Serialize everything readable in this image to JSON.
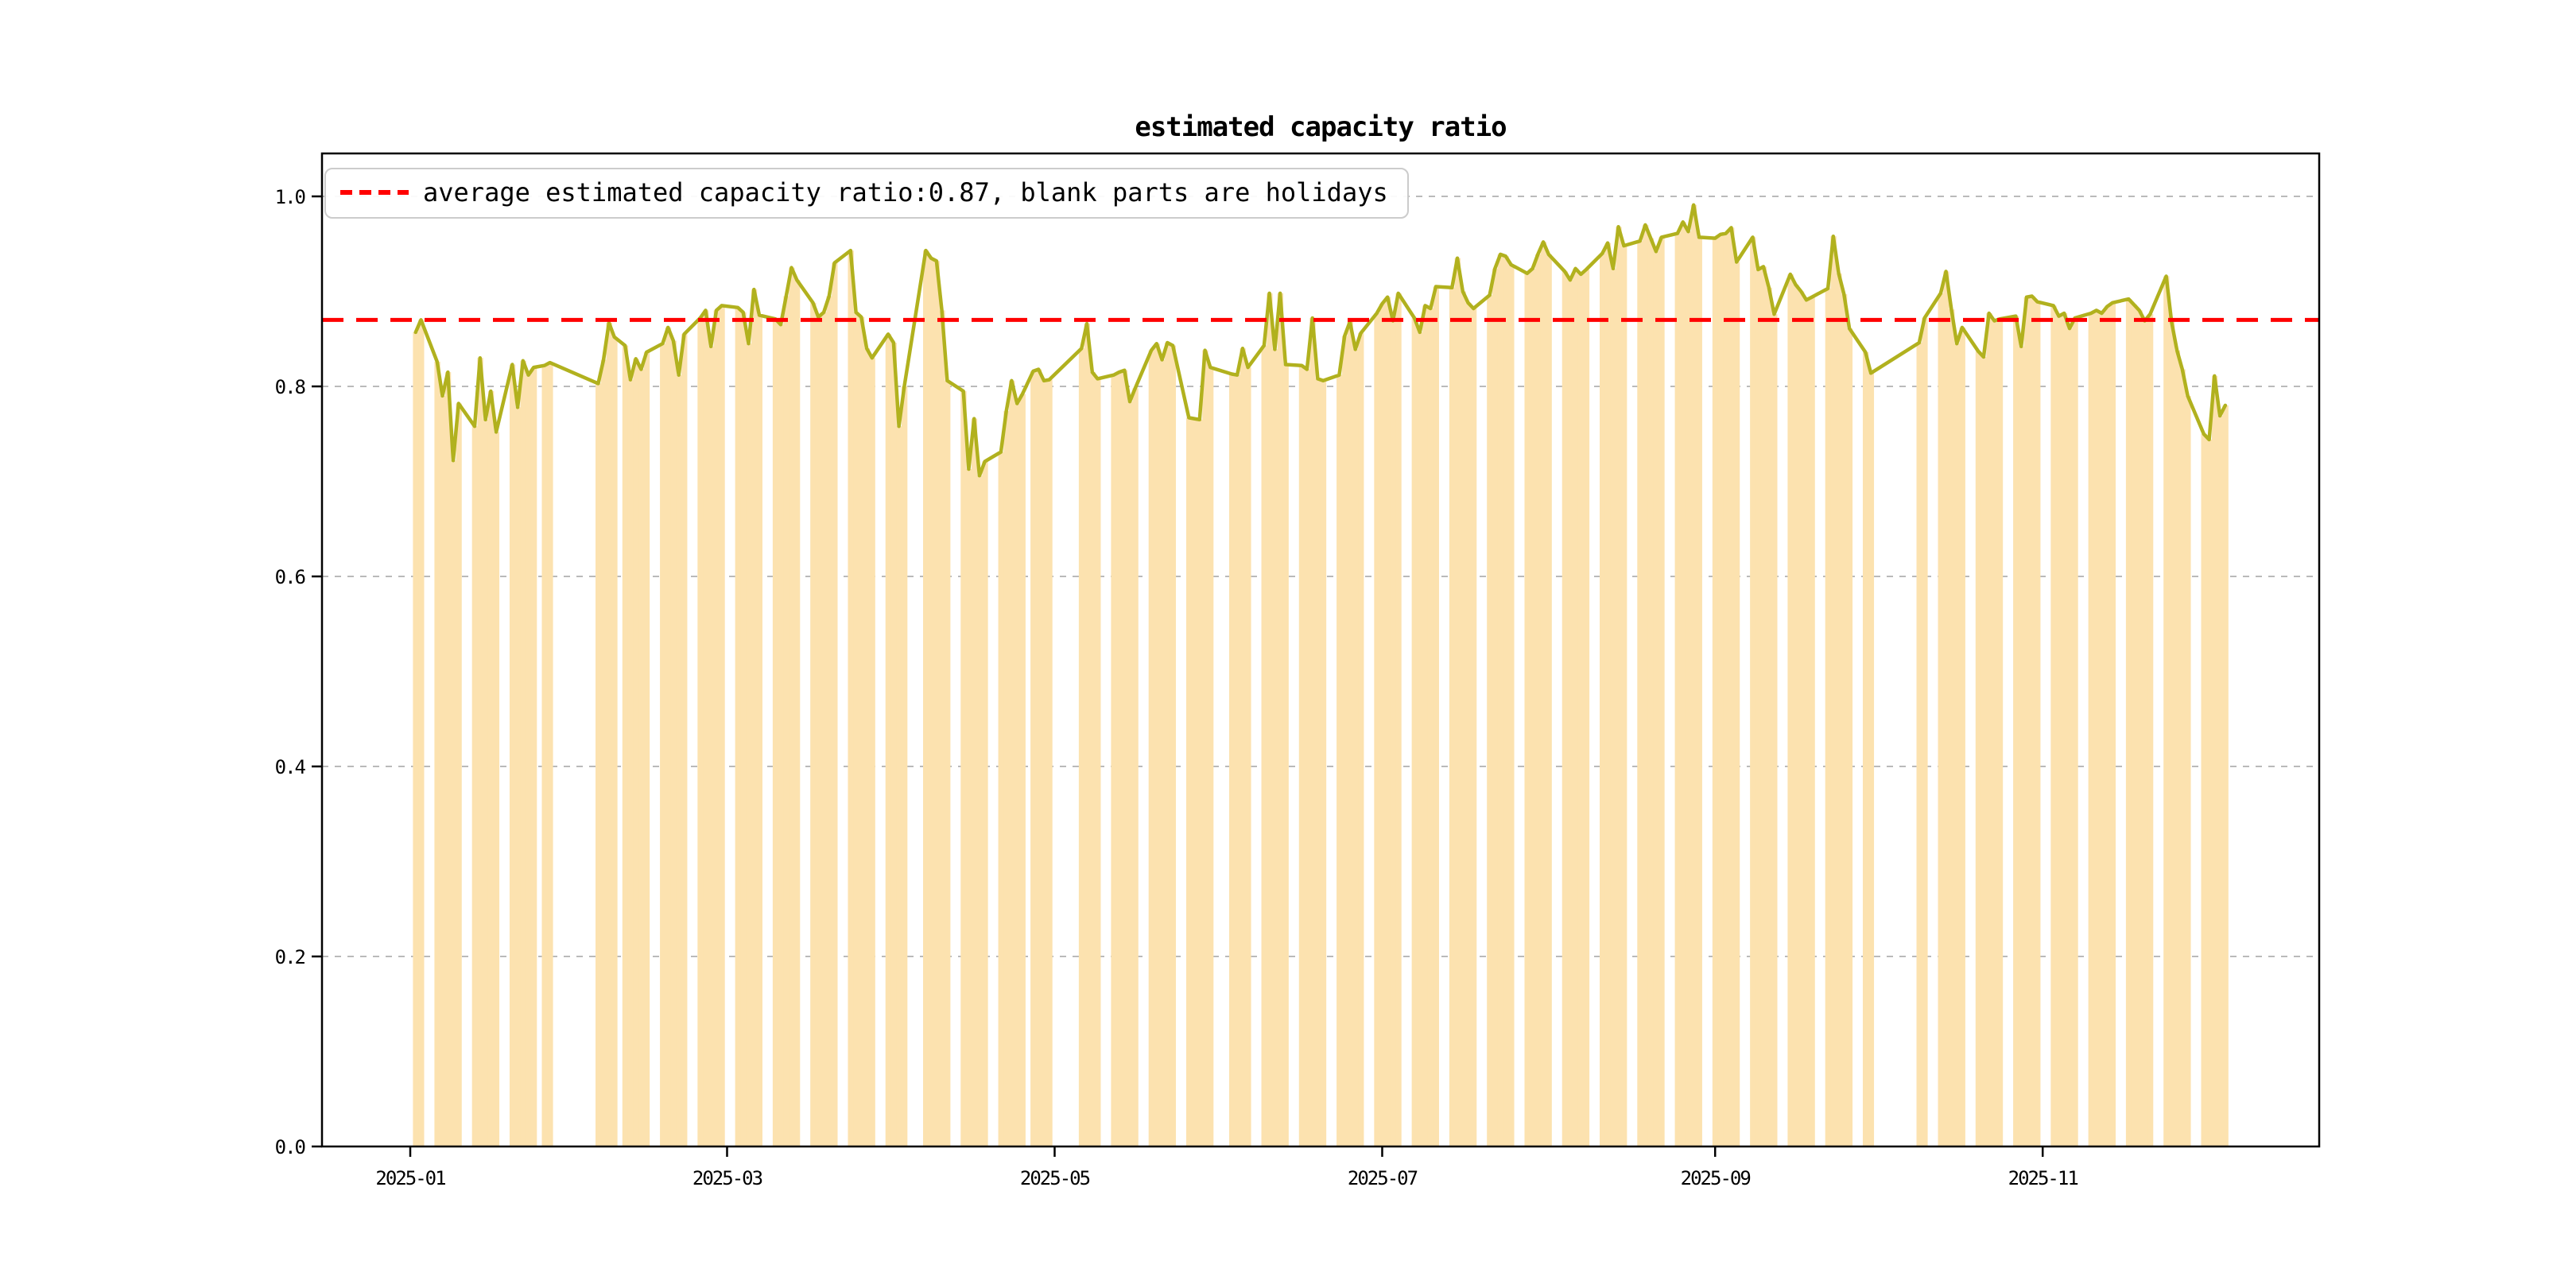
{
  "title": "estimated capacity ratio",
  "legend": {
    "label": "average estimated capacity ratio:0.87, blank parts are holidays",
    "swatch_color": "#ff0000",
    "swatch_style": "dashed"
  },
  "chart_data": {
    "type": "bar+line",
    "title": "estimated capacity ratio",
    "xlabel": "",
    "ylabel": "",
    "ylim": [
      0.0,
      1.045
    ],
    "x_axis_start": "2024-12-15",
    "x_axis_end": "2025-12-23",
    "grid": "horizontal-dashed",
    "legend_position": "upper left",
    "x_tick_labels": [
      "2025-01",
      "2025-03",
      "2025-05",
      "2025-07",
      "2025-09",
      "2025-11"
    ],
    "x_tick_dates": [
      "2025-01-01",
      "2025-03-01",
      "2025-05-01",
      "2025-07-01",
      "2025-09-01",
      "2025-11-01"
    ],
    "y_tick_labels": [
      "0.0",
      "0.2",
      "0.4",
      "0.6",
      "0.8",
      "1.0"
    ],
    "y_tick_values": [
      0.0,
      0.2,
      0.4,
      0.6,
      0.8,
      1.0
    ],
    "average_line": {
      "value": 0.87,
      "color": "#ff0000",
      "style": "dashed"
    },
    "colors": {
      "bar": "#fce2af",
      "line": "#b1b11e",
      "grid": "#b0b0b0",
      "spine": "#000000",
      "average": "#ff0000",
      "legend_border": "#cccccc"
    },
    "note": "blank parts are holidays",
    "points": [
      [
        "2025-01-02",
        0.857
      ],
      [
        "2025-01-03",
        0.87
      ],
      [
        "2025-01-06",
        0.826
      ],
      [
        "2025-01-07",
        0.79
      ],
      [
        "2025-01-08",
        0.815
      ],
      [
        "2025-01-09",
        0.722
      ],
      [
        "2025-01-10",
        0.782
      ],
      [
        "2025-01-13",
        0.758
      ],
      [
        "2025-01-14",
        0.83
      ],
      [
        "2025-01-15",
        0.765
      ],
      [
        "2025-01-16",
        0.795
      ],
      [
        "2025-01-17",
        0.752
      ],
      [
        "2025-01-20",
        0.823
      ],
      [
        "2025-01-21",
        0.778
      ],
      [
        "2025-01-22",
        0.827
      ],
      [
        "2025-01-23",
        0.812
      ],
      [
        "2025-01-24",
        0.82
      ],
      [
        "2025-01-26",
        0.822
      ],
      [
        "2025-01-27",
        0.825
      ],
      [
        "2025-02-05",
        0.803
      ],
      [
        "2025-02-06",
        0.828
      ],
      [
        "2025-02-07",
        0.867
      ],
      [
        "2025-02-08",
        0.852
      ],
      [
        "2025-02-10",
        0.843
      ],
      [
        "2025-02-11",
        0.807
      ],
      [
        "2025-02-12",
        0.829
      ],
      [
        "2025-02-13",
        0.818
      ],
      [
        "2025-02-14",
        0.836
      ],
      [
        "2025-02-17",
        0.845
      ],
      [
        "2025-02-18",
        0.862
      ],
      [
        "2025-02-19",
        0.848
      ],
      [
        "2025-02-20",
        0.812
      ],
      [
        "2025-02-21",
        0.855
      ],
      [
        "2025-02-24",
        0.872
      ],
      [
        "2025-02-25",
        0.88
      ],
      [
        "2025-02-26",
        0.842
      ],
      [
        "2025-02-27",
        0.88
      ],
      [
        "2025-02-28",
        0.885
      ],
      [
        "2025-03-03",
        0.883
      ],
      [
        "2025-03-04",
        0.878
      ],
      [
        "2025-03-05",
        0.845
      ],
      [
        "2025-03-06",
        0.902
      ],
      [
        "2025-03-07",
        0.875
      ],
      [
        "2025-03-10",
        0.871
      ],
      [
        "2025-03-11",
        0.865
      ],
      [
        "2025-03-12",
        0.895
      ],
      [
        "2025-03-13",
        0.925
      ],
      [
        "2025-03-14",
        0.912
      ],
      [
        "2025-03-17",
        0.888
      ],
      [
        "2025-03-18",
        0.873
      ],
      [
        "2025-03-19",
        0.878
      ],
      [
        "2025-03-20",
        0.895
      ],
      [
        "2025-03-21",
        0.93
      ],
      [
        "2025-03-24",
        0.943
      ],
      [
        "2025-03-25",
        0.878
      ],
      [
        "2025-03-26",
        0.873
      ],
      [
        "2025-03-27",
        0.84
      ],
      [
        "2025-03-28",
        0.83
      ],
      [
        "2025-03-31",
        0.855
      ],
      [
        "2025-04-01",
        0.846
      ],
      [
        "2025-04-02",
        0.758
      ],
      [
        "2025-04-03",
        0.8
      ],
      [
        "2025-04-07",
        0.943
      ],
      [
        "2025-04-08",
        0.935
      ],
      [
        "2025-04-09",
        0.932
      ],
      [
        "2025-04-10",
        0.88
      ],
      [
        "2025-04-11",
        0.806
      ],
      [
        "2025-04-14",
        0.795
      ],
      [
        "2025-04-15",
        0.713
      ],
      [
        "2025-04-16",
        0.766
      ],
      [
        "2025-04-17",
        0.706
      ],
      [
        "2025-04-18",
        0.721
      ],
      [
        "2025-04-21",
        0.731
      ],
      [
        "2025-04-22",
        0.774
      ],
      [
        "2025-04-23",
        0.806
      ],
      [
        "2025-04-24",
        0.782
      ],
      [
        "2025-04-25",
        0.792
      ],
      [
        "2025-04-27",
        0.816
      ],
      [
        "2025-04-28",
        0.818
      ],
      [
        "2025-04-29",
        0.806
      ],
      [
        "2025-04-30",
        0.807
      ],
      [
        "2025-05-06",
        0.84
      ],
      [
        "2025-05-07",
        0.866
      ],
      [
        "2025-05-08",
        0.815
      ],
      [
        "2025-05-09",
        0.808
      ],
      [
        "2025-05-12",
        0.812
      ],
      [
        "2025-05-13",
        0.815
      ],
      [
        "2025-05-14",
        0.817
      ],
      [
        "2025-05-15",
        0.784
      ],
      [
        "2025-05-16",
        0.798
      ],
      [
        "2025-05-19",
        0.838
      ],
      [
        "2025-05-20",
        0.845
      ],
      [
        "2025-05-21",
        0.828
      ],
      [
        "2025-05-22",
        0.846
      ],
      [
        "2025-05-23",
        0.843
      ],
      [
        "2025-05-26",
        0.767
      ],
      [
        "2025-05-27",
        0.766
      ],
      [
        "2025-05-28",
        0.765
      ],
      [
        "2025-05-29",
        0.838
      ],
      [
        "2025-05-30",
        0.82
      ],
      [
        "2025-06-03",
        0.813
      ],
      [
        "2025-06-04",
        0.812
      ],
      [
        "2025-06-05",
        0.84
      ],
      [
        "2025-06-06",
        0.82
      ],
      [
        "2025-06-09",
        0.843
      ],
      [
        "2025-06-10",
        0.898
      ],
      [
        "2025-06-11",
        0.839
      ],
      [
        "2025-06-12",
        0.898
      ],
      [
        "2025-06-13",
        0.823
      ],
      [
        "2025-06-16",
        0.822
      ],
      [
        "2025-06-17",
        0.818
      ],
      [
        "2025-06-18",
        0.872
      ],
      [
        "2025-06-19",
        0.808
      ],
      [
        "2025-06-20",
        0.806
      ],
      [
        "2025-06-23",
        0.812
      ],
      [
        "2025-06-24",
        0.853
      ],
      [
        "2025-06-25",
        0.868
      ],
      [
        "2025-06-26",
        0.839
      ],
      [
        "2025-06-27",
        0.856
      ],
      [
        "2025-06-30",
        0.877
      ],
      [
        "2025-07-01",
        0.887
      ],
      [
        "2025-07-02",
        0.894
      ],
      [
        "2025-07-03",
        0.869
      ],
      [
        "2025-07-04",
        0.898
      ],
      [
        "2025-07-07",
        0.872
      ],
      [
        "2025-07-08",
        0.857
      ],
      [
        "2025-07-09",
        0.885
      ],
      [
        "2025-07-10",
        0.882
      ],
      [
        "2025-07-11",
        0.905
      ],
      [
        "2025-07-14",
        0.904
      ],
      [
        "2025-07-15",
        0.935
      ],
      [
        "2025-07-16",
        0.9
      ],
      [
        "2025-07-17",
        0.888
      ],
      [
        "2025-07-18",
        0.882
      ],
      [
        "2025-07-21",
        0.896
      ],
      [
        "2025-07-22",
        0.924
      ],
      [
        "2025-07-23",
        0.939
      ],
      [
        "2025-07-24",
        0.937
      ],
      [
        "2025-07-25",
        0.928
      ],
      [
        "2025-07-28",
        0.919
      ],
      [
        "2025-07-29",
        0.924
      ],
      [
        "2025-07-30",
        0.939
      ],
      [
        "2025-07-31",
        0.952
      ],
      [
        "2025-08-01",
        0.939
      ],
      [
        "2025-08-04",
        0.921
      ],
      [
        "2025-08-05",
        0.912
      ],
      [
        "2025-08-06",
        0.924
      ],
      [
        "2025-08-07",
        0.918
      ],
      [
        "2025-08-08",
        0.923
      ],
      [
        "2025-08-11",
        0.94
      ],
      [
        "2025-08-12",
        0.951
      ],
      [
        "2025-08-13",
        0.924
      ],
      [
        "2025-08-14",
        0.968
      ],
      [
        "2025-08-15",
        0.948
      ],
      [
        "2025-08-18",
        0.953
      ],
      [
        "2025-08-19",
        0.97
      ],
      [
        "2025-08-20",
        0.956
      ],
      [
        "2025-08-21",
        0.942
      ],
      [
        "2025-08-22",
        0.957
      ],
      [
        "2025-08-25",
        0.961
      ],
      [
        "2025-08-26",
        0.973
      ],
      [
        "2025-08-27",
        0.963
      ],
      [
        "2025-08-28",
        0.991
      ],
      [
        "2025-08-29",
        0.957
      ],
      [
        "2025-09-01",
        0.956
      ],
      [
        "2025-09-02",
        0.96
      ],
      [
        "2025-09-03",
        0.961
      ],
      [
        "2025-09-04",
        0.967
      ],
      [
        "2025-09-05",
        0.931
      ],
      [
        "2025-09-08",
        0.957
      ],
      [
        "2025-09-09",
        0.923
      ],
      [
        "2025-09-10",
        0.926
      ],
      [
        "2025-09-11",
        0.904
      ],
      [
        "2025-09-12",
        0.876
      ],
      [
        "2025-09-15",
        0.918
      ],
      [
        "2025-09-16",
        0.907
      ],
      [
        "2025-09-17",
        0.9
      ],
      [
        "2025-09-18",
        0.891
      ],
      [
        "2025-09-19",
        0.894
      ],
      [
        "2025-09-22",
        0.903
      ],
      [
        "2025-09-23",
        0.958
      ],
      [
        "2025-09-24",
        0.919
      ],
      [
        "2025-09-25",
        0.897
      ],
      [
        "2025-09-26",
        0.861
      ],
      [
        "2025-09-29",
        0.836
      ],
      [
        "2025-09-30",
        0.814
      ],
      [
        "2025-10-09",
        0.846
      ],
      [
        "2025-10-10",
        0.872
      ],
      [
        "2025-10-13",
        0.898
      ],
      [
        "2025-10-14",
        0.921
      ],
      [
        "2025-10-15",
        0.881
      ],
      [
        "2025-10-16",
        0.845
      ],
      [
        "2025-10-17",
        0.862
      ],
      [
        "2025-10-20",
        0.837
      ],
      [
        "2025-10-21",
        0.831
      ],
      [
        "2025-10-22",
        0.877
      ],
      [
        "2025-10-23",
        0.869
      ],
      [
        "2025-10-24",
        0.871
      ],
      [
        "2025-10-27",
        0.874
      ],
      [
        "2025-10-28",
        0.842
      ],
      [
        "2025-10-29",
        0.894
      ],
      [
        "2025-10-30",
        0.895
      ],
      [
        "2025-10-31",
        0.889
      ],
      [
        "2025-11-03",
        0.885
      ],
      [
        "2025-11-04",
        0.874
      ],
      [
        "2025-11-05",
        0.877
      ],
      [
        "2025-11-06",
        0.861
      ],
      [
        "2025-11-07",
        0.872
      ],
      [
        "2025-11-10",
        0.877
      ],
      [
        "2025-11-11",
        0.88
      ],
      [
        "2025-11-12",
        0.877
      ],
      [
        "2025-11-13",
        0.884
      ],
      [
        "2025-11-14",
        0.888
      ],
      [
        "2025-11-17",
        0.892
      ],
      [
        "2025-11-18",
        0.886
      ],
      [
        "2025-11-19",
        0.88
      ],
      [
        "2025-11-20",
        0.869
      ],
      [
        "2025-11-21",
        0.876
      ],
      [
        "2025-11-24",
        0.916
      ],
      [
        "2025-11-25",
        0.868
      ],
      [
        "2025-11-26",
        0.838
      ],
      [
        "2025-11-27",
        0.818
      ],
      [
        "2025-11-28",
        0.79
      ],
      [
        "2025-12-01",
        0.75
      ],
      [
        "2025-12-02",
        0.744
      ],
      [
        "2025-12-03",
        0.811
      ],
      [
        "2025-12-04",
        0.769
      ],
      [
        "2025-12-05",
        0.78
      ]
    ]
  }
}
